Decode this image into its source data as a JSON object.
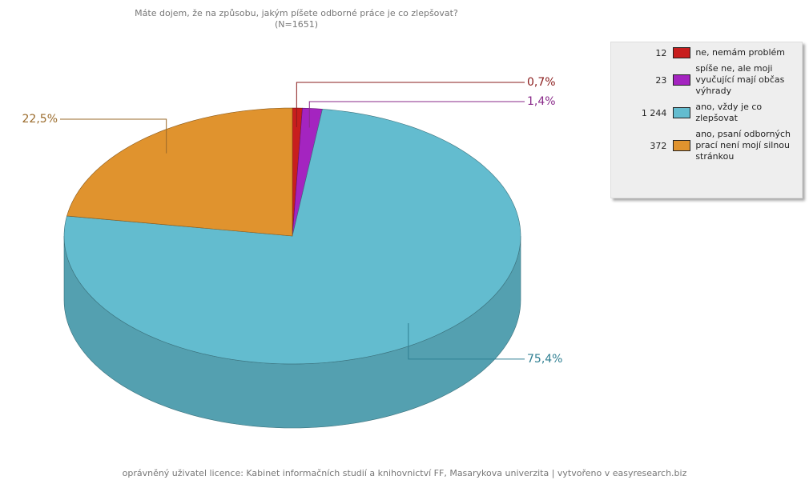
{
  "chart_data": {
    "type": "pie3d",
    "title": "Máte dojem, že na způsobu, jakým píšete odborné práce je co zlepšovat?",
    "subtitle": "(N=1651)",
    "categories": [
      "ne, nemám problém",
      "spíše ne, ale moji vyučující mají občas výhrady",
      "ano, vždy je co zlepšovat",
      "ano, psaní odborných prací není mojí silnou stránkou"
    ],
    "values": [
      0.7,
      1.4,
      75.4,
      22.5
    ],
    "value_labels": [
      "0,7%",
      "1,4%",
      "75,4%",
      "22,5%"
    ],
    "counts": [
      12,
      23,
      1244,
      372
    ],
    "count_labels": [
      "12",
      "23",
      "1 244",
      "372"
    ],
    "colors": [
      "#c81e1e",
      "#a424c0",
      "#63bccf",
      "#e0932e"
    ],
    "label_colors": [
      "#8a1c1c",
      "#8a2a8a",
      "#2f7f92",
      "#9a6a2a"
    ],
    "footer": "oprávněný uživatel licence: Kabinet informačních studií a knihovnictví FF, Masarykova univerzita | vytvořeno v easyresearch.biz"
  }
}
